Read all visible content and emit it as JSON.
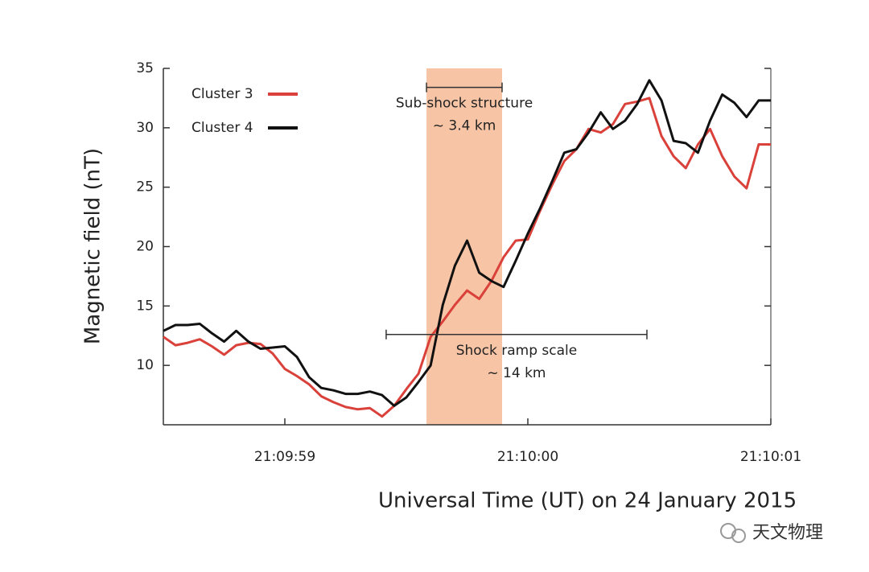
{
  "chart_data": {
    "type": "line",
    "x_label": "Universal Time (UT) on 24 January 2015",
    "y_label": "Magnetic field (nT)",
    "x": [
      75598.5,
      75598.55,
      75598.6,
      75598.65,
      75598.7,
      75598.75,
      75598.8,
      75598.85,
      75598.9,
      75598.95,
      75599,
      75599.05,
      75599.1,
      75599.15,
      75599.2,
      75599.25,
      75599.3,
      75599.35,
      75599.4,
      75599.45,
      75599.5,
      75599.55,
      75599.6,
      75599.65,
      75599.7,
      75599.75,
      75599.8,
      75599.85,
      75599.9,
      75599.95,
      75600,
      75600.05,
      75600.1,
      75600.15,
      75600.2,
      75600.25,
      75600.3,
      75600.35,
      75600.4,
      75600.45,
      75600.5,
      75600.55,
      75600.6,
      75600.65,
      75600.7,
      75600.75,
      75600.8,
      75600.85,
      75600.9,
      75600.95,
      75601
    ],
    "series": [
      {
        "name": "Cluster 3",
        "color": "#d9413a",
        "values": [
          12.4,
          11.7,
          11.9,
          12.2,
          11.6,
          10.9,
          11.7,
          11.9,
          11.8,
          11.0,
          9.7,
          9.1,
          8.4,
          7.4,
          6.9,
          6.5,
          6.3,
          6.4,
          5.7,
          6.6,
          8.0,
          9.3,
          12.4,
          13.7,
          15.1,
          16.3,
          15.6,
          17.1,
          19.1,
          20.5,
          20.6,
          23.0,
          25.2,
          27.2,
          28.2,
          29.9,
          29.6,
          30.3,
          32.0,
          32.2,
          32.5,
          29.3,
          27.6,
          26.6,
          28.6,
          29.9,
          27.6,
          25.9,
          24.9,
          28.6,
          28.6
        ]
      },
      {
        "name": "Cluster 4",
        "color": "#111111",
        "values": [
          12.9,
          13.4,
          13.4,
          13.5,
          12.7,
          12.0,
          12.9,
          12.0,
          11.4,
          11.5,
          11.6,
          10.7,
          9.0,
          8.1,
          7.9,
          7.6,
          7.6,
          7.8,
          7.5,
          6.6,
          7.3,
          8.6,
          10.0,
          15.1,
          18.4,
          20.5,
          17.8,
          17.1,
          16.6,
          18.8,
          21.1,
          23.2,
          25.5,
          27.9,
          28.2,
          29.6,
          31.3,
          29.9,
          30.6,
          32.0,
          34.0,
          32.3,
          28.9,
          28.7,
          27.9,
          30.6,
          32.8,
          32.1,
          30.9,
          32.3,
          32.3
        ]
      }
    ],
    "xlim": [
      75598.5,
      75601
    ],
    "xticks": [
      {
        "value": 75599,
        "label": "21:09:59"
      },
      {
        "value": 75600,
        "label": "21:10:00"
      },
      {
        "value": 75601,
        "label": "21:10:01"
      }
    ],
    "ylim": [
      5,
      35
    ],
    "yticks": [
      10,
      15,
      20,
      25,
      30,
      35
    ],
    "grid": false,
    "legend": "upper left",
    "highlight": {
      "x": [
        75599.583,
        75599.894
      ],
      "color": "#f7c4a5"
    },
    "annotations": [
      {
        "lines": [
          "Sub-shock structure",
          "~ 3.4 km"
        ],
        "x": [
          75599.583,
          75599.894
        ],
        "y": 33.4
      },
      {
        "lines": [
          "Shock ramp scale",
          "~ 14 km"
        ],
        "x": [
          75599.417,
          75600.49
        ],
        "y": 12.6
      }
    ],
    "watermark": "天文物理"
  }
}
